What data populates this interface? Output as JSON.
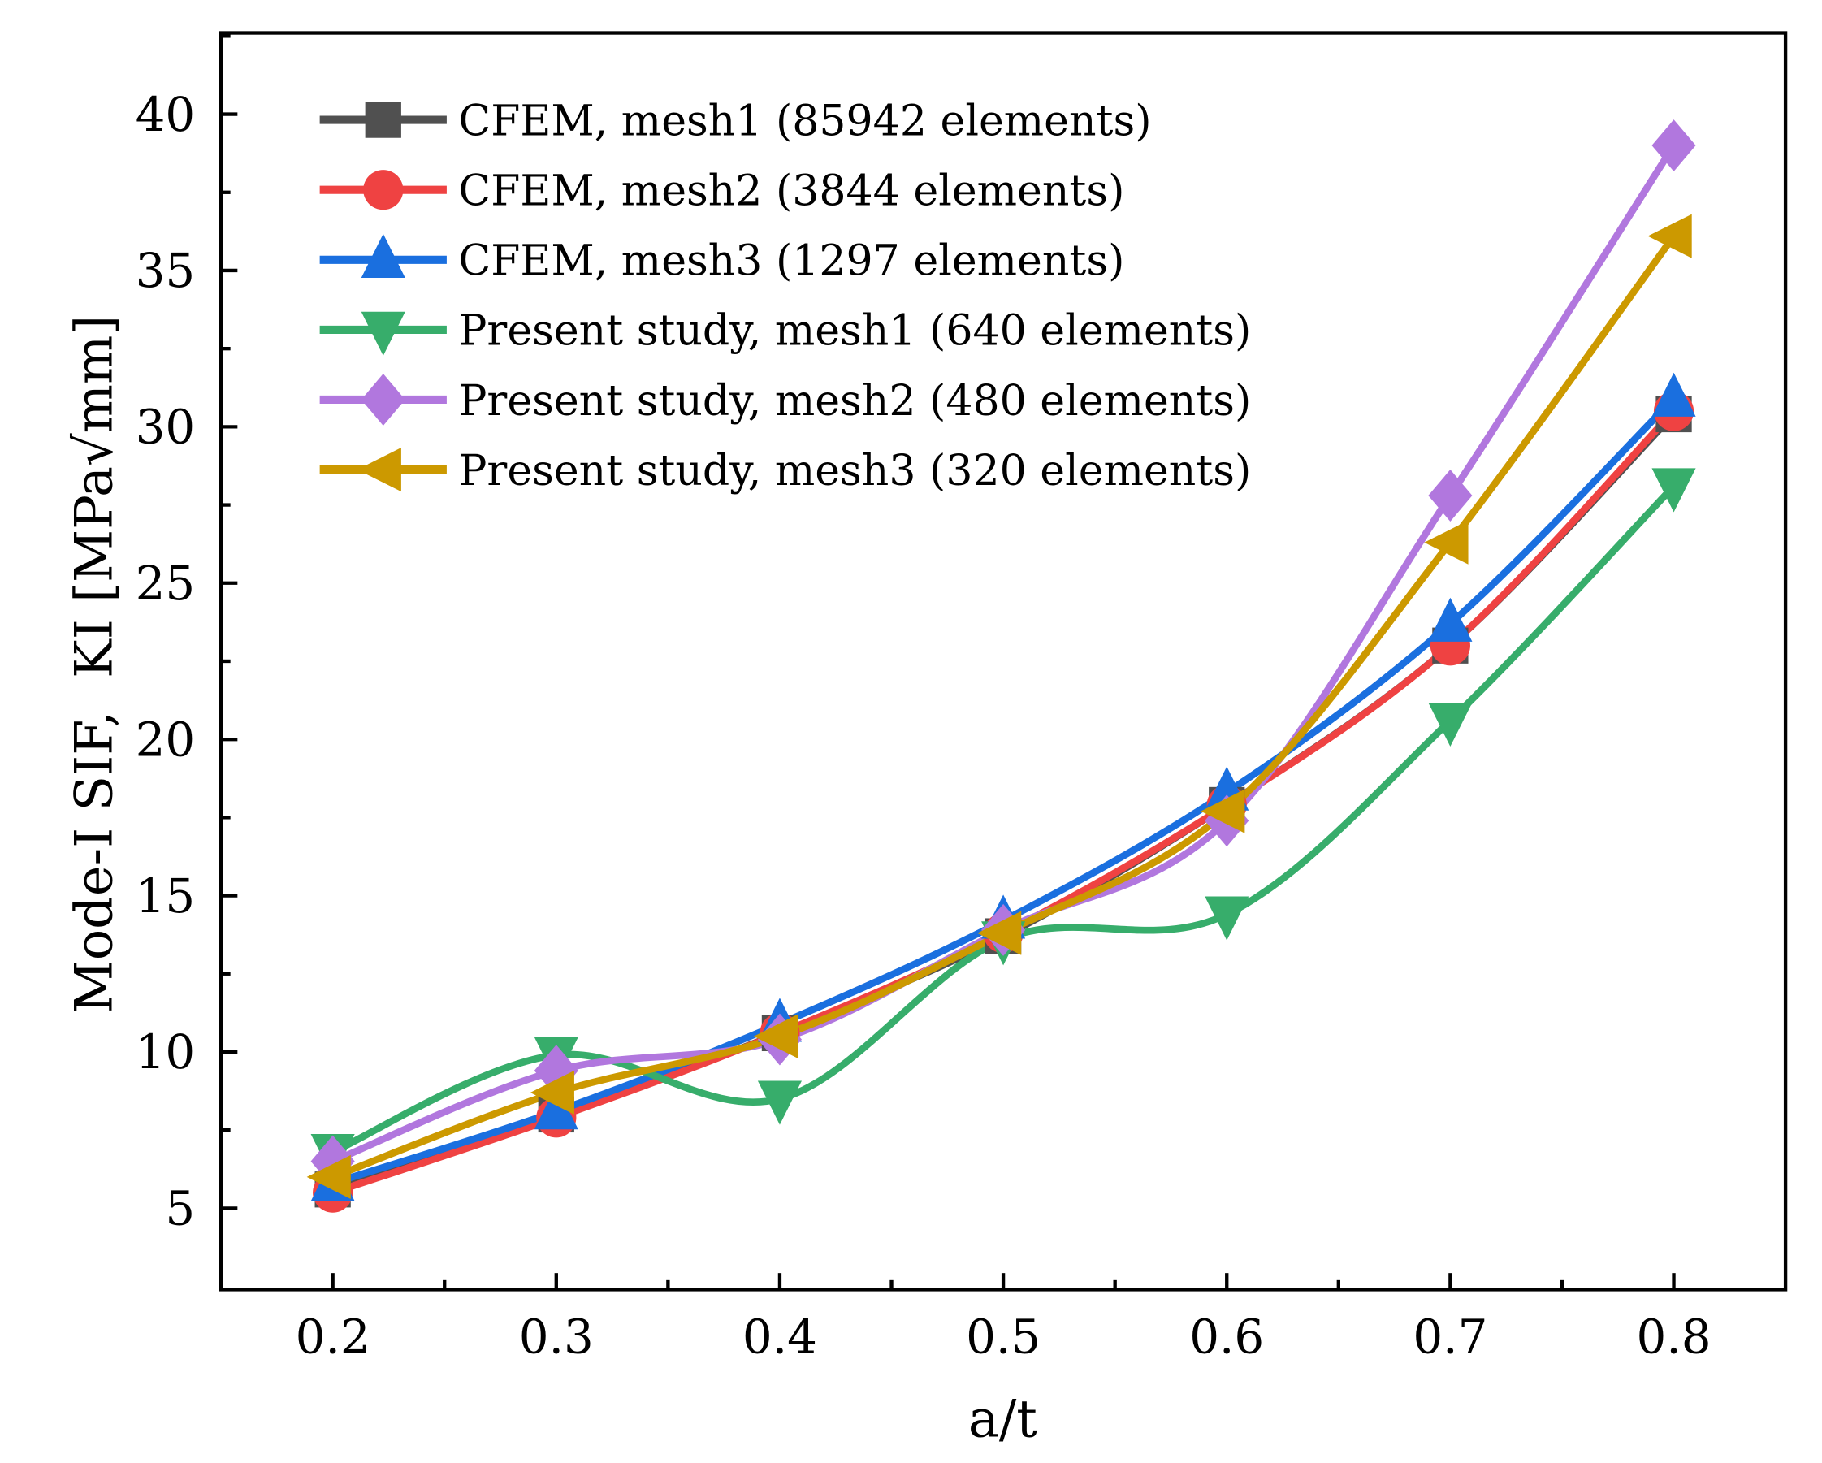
{
  "chart_data": {
    "type": "line",
    "title": "",
    "xlabel": "a/t",
    "ylabel": "Mode-I SIF,  KI [MPa√mm]",
    "xlim": [
      0.15,
      0.85
    ],
    "ylim": [
      2.4,
      42.6
    ],
    "xticks": [
      0.2,
      0.3,
      0.4,
      0.5,
      0.6,
      0.7,
      0.8
    ],
    "xtick_labels": [
      "0.2",
      "0.3",
      "0.4",
      "0.5",
      "0.6",
      "0.7",
      "0.8"
    ],
    "yticks": [
      5,
      10,
      15,
      20,
      25,
      30,
      35,
      40
    ],
    "ytick_labels": [
      "5",
      "10",
      "15",
      "20",
      "25",
      "30",
      "35",
      "40"
    ],
    "grid": false,
    "legend_position": "top-left",
    "x": [
      0.2,
      0.3,
      0.4,
      0.5,
      0.6,
      0.7,
      0.8
    ],
    "series": [
      {
        "name": "CFEM, mesh1 (85942 elements)",
        "color": "#505050",
        "marker": "square",
        "values": [
          5.6,
          8.0,
          10.6,
          13.7,
          17.9,
          23.0,
          30.4
        ]
      },
      {
        "name": "CFEM, mesh2 (3844 elements)",
        "color": "#ef4242",
        "marker": "circle",
        "values": [
          5.5,
          7.9,
          10.6,
          13.8,
          17.9,
          23.0,
          30.5
        ]
      },
      {
        "name": "CFEM, mesh3 (1297 elements)",
        "color": "#1a6fdf",
        "marker": "triangle-up",
        "values": [
          5.8,
          8.1,
          10.9,
          14.2,
          18.3,
          23.7,
          30.9
        ]
      },
      {
        "name": "Present study, mesh1 (640 elements)",
        "color": "#37ad6b",
        "marker": "triangle-down",
        "values": [
          6.8,
          9.9,
          8.5,
          13.6,
          14.4,
          20.6,
          28.1
        ]
      },
      {
        "name": " Present study, mesh2 (480 elements)",
        "color": "#b177de",
        "marker": "diamond",
        "values": [
          6.5,
          9.4,
          10.4,
          13.9,
          17.4,
          27.8,
          39.0
        ]
      },
      {
        "name": "Present study, mesh3 (320 elements)",
        "color": "#cc9900",
        "marker": "triangle-left",
        "values": [
          6.0,
          8.7,
          10.5,
          13.8,
          17.7,
          26.3,
          36.1
        ]
      }
    ]
  }
}
